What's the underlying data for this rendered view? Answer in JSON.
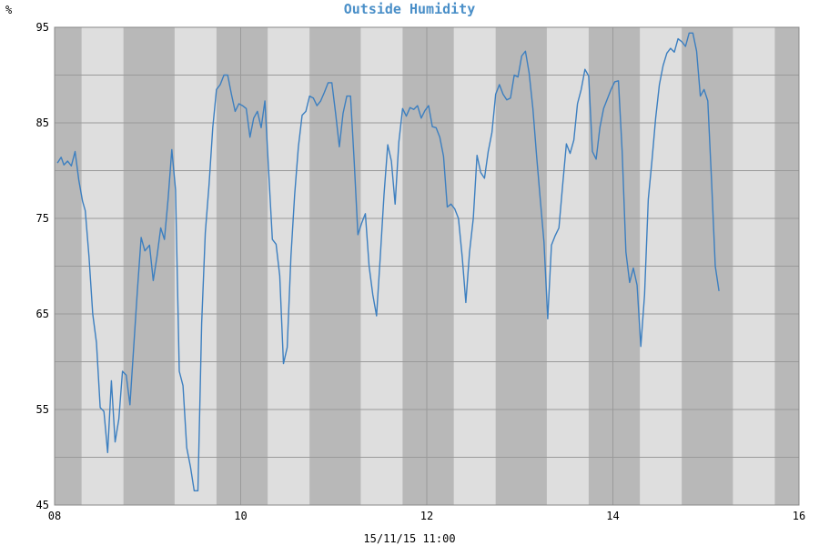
{
  "chart_data": {
    "type": "line",
    "title": "Outside Humidity",
    "ylabel": "%",
    "xlabel": "15/11/15 11:00",
    "xlim": [
      8,
      16
    ],
    "ylim": [
      45,
      95
    ],
    "x_ticks": [
      {
        "value": 8,
        "label": "08"
      },
      {
        "value": 10,
        "label": "10"
      },
      {
        "value": 12,
        "label": "12"
      },
      {
        "value": 14,
        "label": "14"
      },
      {
        "value": 16,
        "label": "16"
      }
    ],
    "y_ticks": [
      {
        "value": 45,
        "label": "45"
      },
      {
        "value": 55,
        "label": "55"
      },
      {
        "value": 65,
        "label": "65"
      },
      {
        "value": 75,
        "label": "75"
      },
      {
        "value": 85,
        "label": "85"
      },
      {
        "value": 95,
        "label": "95"
      }
    ],
    "grid": true,
    "colors": {
      "line": "#3c7fc0",
      "title": "#4a8fc8",
      "night_band": "#b8b8b8",
      "day_band": "#dedede",
      "grid": "#9a9a9a"
    },
    "night_bands": [
      [
        8.0,
        8.29
      ],
      [
        8.74,
        9.29
      ],
      [
        9.74,
        10.29
      ],
      [
        10.74,
        11.29
      ],
      [
        11.74,
        12.29
      ],
      [
        12.74,
        13.29
      ],
      [
        13.74,
        14.29
      ],
      [
        14.74,
        15.29
      ],
      [
        15.74,
        16.0
      ]
    ],
    "series": [
      {
        "values": [
          [
            8.03,
            80.8
          ],
          [
            8.07,
            81.4
          ],
          [
            8.1,
            80.6
          ],
          [
            8.14,
            81.0
          ],
          [
            8.18,
            80.5
          ],
          [
            8.22,
            82.0
          ],
          [
            8.26,
            79.0
          ],
          [
            8.3,
            76.8
          ],
          [
            8.33,
            75.8
          ],
          [
            8.37,
            71.0
          ],
          [
            8.41,
            65.0
          ],
          [
            8.45,
            62.0
          ],
          [
            8.49,
            55.2
          ],
          [
            8.53,
            54.8
          ],
          [
            8.57,
            50.5
          ],
          [
            8.61,
            58.0
          ],
          [
            8.65,
            51.6
          ],
          [
            8.69,
            54.0
          ],
          [
            8.73,
            59.0
          ],
          [
            8.77,
            58.6
          ],
          [
            8.81,
            55.5
          ],
          [
            8.85,
            61.5
          ],
          [
            8.89,
            67.5
          ],
          [
            8.93,
            73.0
          ],
          [
            8.97,
            71.6
          ],
          [
            9.02,
            72.2
          ],
          [
            9.06,
            68.5
          ],
          [
            9.1,
            71.0
          ],
          [
            9.14,
            74.0
          ],
          [
            9.18,
            72.8
          ],
          [
            9.22,
            77.0
          ],
          [
            9.26,
            82.2
          ],
          [
            9.3,
            78.0
          ],
          [
            9.34,
            59.0
          ],
          [
            9.38,
            57.5
          ],
          [
            9.42,
            51.0
          ],
          [
            9.46,
            49.0
          ],
          [
            9.5,
            46.5
          ],
          [
            9.54,
            46.5
          ],
          [
            9.58,
            64.0
          ],
          [
            9.62,
            73.5
          ],
          [
            9.66,
            78.5
          ],
          [
            9.7,
            84.5
          ],
          [
            9.74,
            88.5
          ],
          [
            9.78,
            89.0
          ],
          [
            9.82,
            90.0
          ],
          [
            9.86,
            90.0
          ],
          [
            9.9,
            88.0
          ],
          [
            9.94,
            86.2
          ],
          [
            9.98,
            87.0
          ],
          [
            10.02,
            86.8
          ],
          [
            10.06,
            86.5
          ],
          [
            10.1,
            83.5
          ],
          [
            10.14,
            85.5
          ],
          [
            10.18,
            86.2
          ],
          [
            10.22,
            84.5
          ],
          [
            10.26,
            87.3
          ],
          [
            10.3,
            80.0
          ],
          [
            10.34,
            72.8
          ],
          [
            10.38,
            72.3
          ],
          [
            10.42,
            69.0
          ],
          [
            10.46,
            59.8
          ],
          [
            10.5,
            61.5
          ],
          [
            10.54,
            71.0
          ],
          [
            10.58,
            77.5
          ],
          [
            10.62,
            82.5
          ],
          [
            10.66,
            85.8
          ],
          [
            10.7,
            86.2
          ],
          [
            10.74,
            87.8
          ],
          [
            10.78,
            87.6
          ],
          [
            10.82,
            86.8
          ],
          [
            10.86,
            87.3
          ],
          [
            10.9,
            88.2
          ],
          [
            10.94,
            89.2
          ],
          [
            10.98,
            89.2
          ],
          [
            11.02,
            86.0
          ],
          [
            11.06,
            82.5
          ],
          [
            11.1,
            86.0
          ],
          [
            11.14,
            87.8
          ],
          [
            11.18,
            87.8
          ],
          [
            11.22,
            81.0
          ],
          [
            11.26,
            73.3
          ],
          [
            11.3,
            74.5
          ],
          [
            11.34,
            75.5
          ],
          [
            11.38,
            70.0
          ],
          [
            11.42,
            67.0
          ],
          [
            11.46,
            64.8
          ],
          [
            11.5,
            71.0
          ],
          [
            11.54,
            77.5
          ],
          [
            11.58,
            82.7
          ],
          [
            11.62,
            81.0
          ],
          [
            11.66,
            76.5
          ],
          [
            11.7,
            83.0
          ],
          [
            11.74,
            86.5
          ],
          [
            11.78,
            85.7
          ],
          [
            11.82,
            86.6
          ],
          [
            11.86,
            86.4
          ],
          [
            11.9,
            86.8
          ],
          [
            11.94,
            85.5
          ],
          [
            11.98,
            86.3
          ],
          [
            12.02,
            86.8
          ],
          [
            12.06,
            84.6
          ],
          [
            12.1,
            84.5
          ],
          [
            12.14,
            83.5
          ],
          [
            12.18,
            81.5
          ],
          [
            12.22,
            76.2
          ],
          [
            12.26,
            76.5
          ],
          [
            12.3,
            76.0
          ],
          [
            12.34,
            75.0
          ],
          [
            12.38,
            71.0
          ],
          [
            12.42,
            66.2
          ],
          [
            12.46,
            71.5
          ],
          [
            12.5,
            75.0
          ],
          [
            12.54,
            81.6
          ],
          [
            12.58,
            79.8
          ],
          [
            12.62,
            79.2
          ],
          [
            12.66,
            82.0
          ],
          [
            12.7,
            84.0
          ],
          [
            12.74,
            88.0
          ],
          [
            12.78,
            89.0
          ],
          [
            12.82,
            88.0
          ],
          [
            12.86,
            87.4
          ],
          [
            12.9,
            87.6
          ],
          [
            12.94,
            90.0
          ],
          [
            12.98,
            89.8
          ],
          [
            13.02,
            92.0
          ],
          [
            13.06,
            92.5
          ],
          [
            13.1,
            90.2
          ],
          [
            13.14,
            86.5
          ],
          [
            13.18,
            81.5
          ],
          [
            13.22,
            77.0
          ],
          [
            13.26,
            72.5
          ],
          [
            13.3,
            64.5
          ],
          [
            13.34,
            72.2
          ],
          [
            13.38,
            73.2
          ],
          [
            13.42,
            74.0
          ],
          [
            13.46,
            78.5
          ],
          [
            13.5,
            82.8
          ],
          [
            13.54,
            81.8
          ],
          [
            13.58,
            83.2
          ],
          [
            13.62,
            87.0
          ],
          [
            13.66,
            88.5
          ],
          [
            13.7,
            90.6
          ],
          [
            13.74,
            89.9
          ],
          [
            13.78,
            82.0
          ],
          [
            13.82,
            81.2
          ],
          [
            13.86,
            84.5
          ],
          [
            13.9,
            86.5
          ],
          [
            13.94,
            87.5
          ],
          [
            13.98,
            88.5
          ],
          [
            14.02,
            89.3
          ],
          [
            14.06,
            89.4
          ],
          [
            14.1,
            82.0
          ],
          [
            14.14,
            71.5
          ],
          [
            14.18,
            68.3
          ],
          [
            14.22,
            69.8
          ],
          [
            14.26,
            68.0
          ],
          [
            14.3,
            61.6
          ],
          [
            14.34,
            67.0
          ],
          [
            14.38,
            77.0
          ],
          [
            14.42,
            81.0
          ],
          [
            14.46,
            85.5
          ],
          [
            14.5,
            89.0
          ],
          [
            14.54,
            91.0
          ],
          [
            14.58,
            92.3
          ],
          [
            14.62,
            92.8
          ],
          [
            14.66,
            92.4
          ],
          [
            14.7,
            93.8
          ],
          [
            14.74,
            93.5
          ],
          [
            14.78,
            93.0
          ],
          [
            14.82,
            94.4
          ],
          [
            14.86,
            94.4
          ],
          [
            14.9,
            92.5
          ],
          [
            14.94,
            87.8
          ],
          [
            14.98,
            88.5
          ],
          [
            15.02,
            87.3
          ],
          [
            15.06,
            79.0
          ],
          [
            15.1,
            70.0
          ],
          [
            15.14,
            67.4
          ]
        ]
      }
    ]
  }
}
